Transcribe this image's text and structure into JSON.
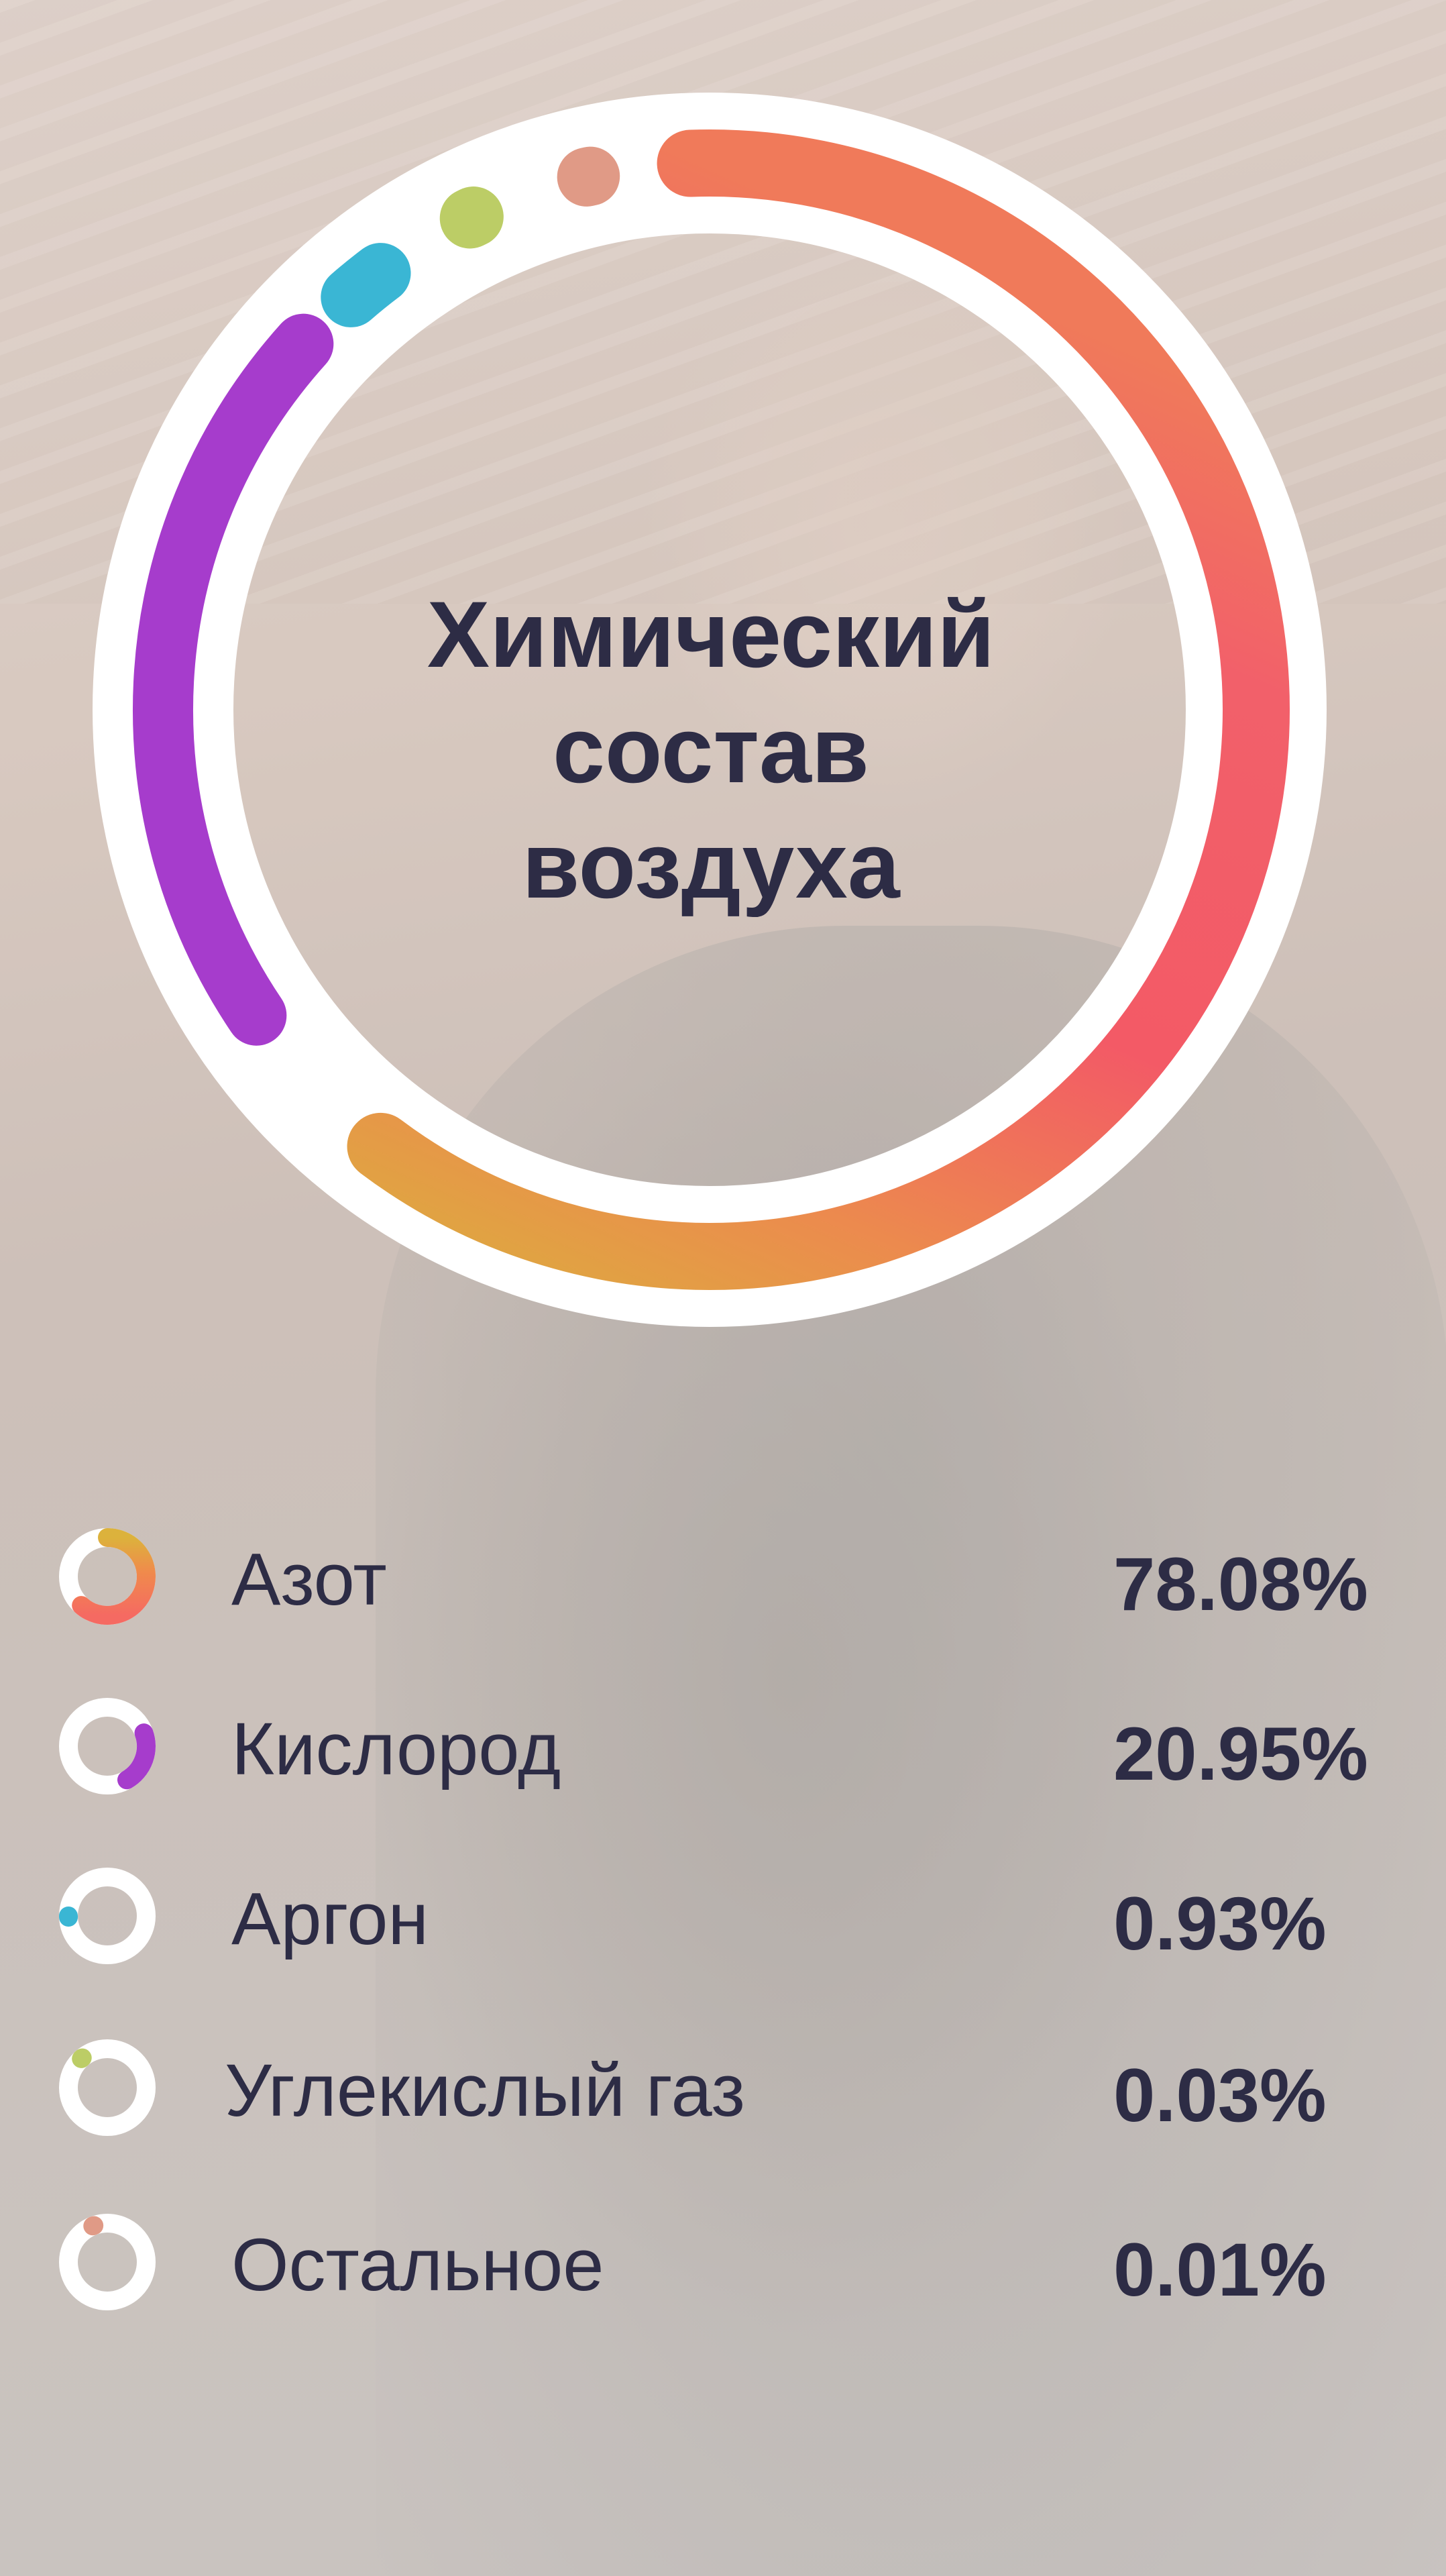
{
  "chart_data": {
    "type": "pie",
    "title": [
      "Химический",
      "состав",
      "воздуха"
    ],
    "categories": [
      "Азот",
      "Кислород",
      "Аргон",
      "Углекислый газ",
      "Остальное"
    ],
    "values": [
      78.08,
      20.95,
      0.93,
      0.03,
      0.01
    ],
    "value_labels": [
      "78.08%",
      "20.95%",
      "0.93%",
      "0.03%",
      "0.01%"
    ],
    "unit": "%",
    "colors": {
      "nitrogen_start": "#f56a62",
      "nitrogen_mid": "#f08a4c",
      "nitrogen_end": "#dcb23c",
      "oxygen": "#a63ccc",
      "argon": "#3ab6d4",
      "co2": "#bccd66",
      "other": "#e09a86",
      "ring": "#ffffff",
      "text": "#2d2c45"
    }
  }
}
